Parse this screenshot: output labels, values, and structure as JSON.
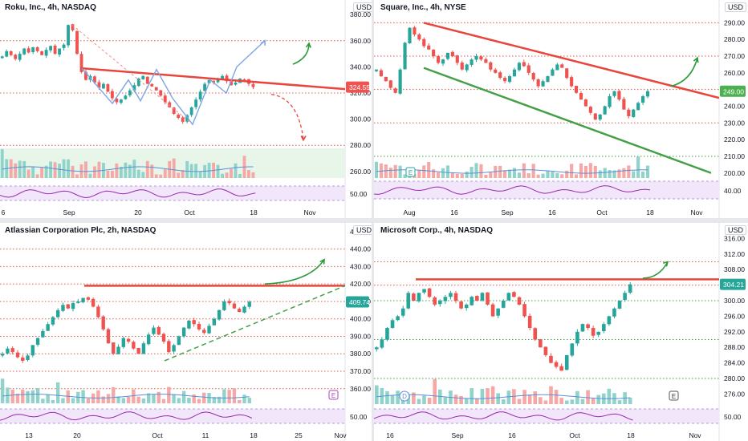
{
  "panels": [
    {
      "title": "Roku, Inc., 4h, NASDAQ",
      "currency": "USD",
      "price_tag": "324.55",
      "y_ticks": [
        "380.00",
        "360.00",
        "340.00",
        "320.00",
        "300.00",
        "280.00",
        "260.00"
      ],
      "rsi_tick": "50.00",
      "x_ticks": [
        "6",
        "Sep",
        "20",
        "Oct",
        "18",
        "Nov"
      ]
    },
    {
      "title": "Square, Inc., 4h, NYSE",
      "currency": "USD",
      "price_tag": "249.00",
      "y_ticks": [
        "290.00",
        "280.00",
        "270.00",
        "260.00",
        "250.00",
        "240.00",
        "230.00",
        "220.00",
        "210.00",
        "200.00"
      ],
      "rsi_tick": "40.00",
      "x_ticks": [
        "Aug",
        "16",
        "Sep",
        "16",
        "Oct",
        "18",
        "Nov"
      ],
      "event_marker": "E"
    },
    {
      "title": "Atlassian Corporation Plc, 2h, NASDAQ",
      "currency": "USD",
      "price_tag": "409.74",
      "y_ticks": [
        "450.00",
        "440.00",
        "430.00",
        "420.00",
        "410.00",
        "400.00",
        "390.00",
        "380.00",
        "370.00",
        "360.00"
      ],
      "rsi_tick": "50.00",
      "x_ticks": [
        "13",
        "20",
        "Oct",
        "11",
        "18",
        "25",
        "Nov"
      ],
      "event_marker": "E"
    },
    {
      "title": "Microsoft Corp., 4h, NASDAQ",
      "currency": "USD",
      "price_tag": "304.21",
      "y_ticks": [
        "316.00",
        "312.00",
        "308.00",
        "304.00",
        "300.00",
        "296.00",
        "292.00",
        "288.00",
        "284.00",
        "280.00",
        "276.00"
      ],
      "rsi_tick": "50.00",
      "x_ticks": [
        "16",
        "Sep",
        "16",
        "Oct",
        "18",
        "Nov"
      ],
      "event_markers": [
        "D",
        "E"
      ]
    }
  ],
  "colors": {
    "up": "#26a69a",
    "down": "#ef5350",
    "resistance": "#e8453c",
    "support": "#43a047",
    "dotted_level": "#e05a4f",
    "dotted_level_green": "#43a047",
    "arrow": "#2e9a3b",
    "path": "#7aa6e6",
    "ma": "#5b8fd8",
    "rsi": "#9c27b0",
    "rsi_band": "#f1e6fa",
    "volume_band": "#e8f5e9"
  },
  "chart_data": [
    {
      "type": "candlestick",
      "title": "Roku, Inc., 4h, NASDAQ",
      "ylim": [
        255,
        385
      ],
      "x_labels": [
        "6",
        "Sep",
        "20",
        "Oct",
        "18",
        "Nov"
      ],
      "last_price": 324.55,
      "closes": [
        348,
        352,
        349,
        346,
        350,
        354,
        351,
        355,
        352,
        349,
        353,
        356,
        350,
        354,
        357,
        372,
        368,
        350,
        336,
        330,
        333,
        328,
        324,
        327,
        321,
        316,
        313,
        315,
        318,
        322,
        326,
        331,
        333,
        327,
        325,
        322,
        318,
        313,
        309,
        304,
        301,
        298,
        303,
        309,
        315,
        321,
        327,
        330,
        328,
        331,
        333,
        329,
        326,
        328,
        331,
        330,
        327,
        324.55
      ],
      "levels_dotted": [
        360,
        320,
        280
      ],
      "resistance_trendline": [
        [
          0.22,
          339
        ],
        [
          1.0,
          323
        ]
      ],
      "projection_up": "to ~360 then higher",
      "projection_down": "from ~319 dropping to ~283",
      "volume_visible": true,
      "rsi_visible": true
    },
    {
      "type": "candlestick",
      "title": "Square, Inc., 4h, NYSE",
      "ylim": [
        197,
        295
      ],
      "x_labels": [
        "Aug",
        "16",
        "Sep",
        "16",
        "Oct",
        "18",
        "Nov"
      ],
      "last_price": 249.0,
      "closes": [
        262,
        258,
        255,
        251,
        248,
        262,
        278,
        287,
        283,
        280,
        276,
        274,
        270,
        266,
        268,
        272,
        270,
        266,
        262,
        265,
        268,
        270,
        268,
        266,
        262,
        260,
        257,
        255,
        258,
        262,
        266,
        264,
        260,
        256,
        252,
        255,
        258,
        262,
        265,
        263,
        257,
        252,
        248,
        244,
        240,
        236,
        232,
        235,
        240,
        246,
        249,
        244,
        238,
        234,
        238,
        242,
        246,
        249
      ],
      "levels_dotted": [
        290,
        270,
        250,
        230,
        210
      ],
      "resistance_trendline": [
        [
          0.14,
          290
        ],
        [
          1.0,
          245
        ]
      ],
      "support_trendline": [
        [
          0.14,
          263
        ],
        [
          1.0,
          201
        ]
      ],
      "volume_visible": true,
      "rsi_visible": true
    },
    {
      "type": "candlestick",
      "title": "Atlassian Corporation Plc, 2h, NASDAQ",
      "ylim": [
        353,
        455
      ],
      "x_labels": [
        "13",
        "20",
        "Oct",
        "11",
        "18",
        "25",
        "Nov"
      ],
      "last_price": 409.74,
      "closes": [
        380,
        383,
        381,
        378,
        376,
        379,
        385,
        389,
        393,
        397,
        401,
        405,
        408,
        406,
        409,
        410,
        412,
        411,
        407,
        401,
        394,
        386,
        380,
        384,
        389,
        387,
        383,
        380,
        386,
        391,
        395,
        391,
        387,
        381,
        385,
        390,
        395,
        399,
        397,
        394,
        392,
        396,
        400,
        405,
        410,
        409,
        406,
        404,
        407,
        409.74
      ],
      "levels_dotted": [
        440,
        430,
        420,
        410,
        400,
        390,
        380,
        370,
        360
      ],
      "resistance_level": 419,
      "support_trendline_dashed": [
        [
          0.47,
          376
        ],
        [
          1.0,
          419
        ]
      ],
      "volume_visible": true,
      "rsi_visible": true
    },
    {
      "type": "candlestick",
      "title": "Microsoft Corp., 4h, NASDAQ",
      "ylim": [
        273,
        320
      ],
      "x_labels": [
        "16",
        "Sep",
        "16",
        "Oct",
        "18",
        "Nov"
      ],
      "last_price": 304.21,
      "closes": [
        288,
        290,
        293,
        295,
        296,
        298,
        302,
        300,
        302,
        303,
        301,
        299,
        300,
        301,
        302,
        300,
        298,
        299,
        301,
        300,
        302,
        299,
        296,
        298,
        300,
        302,
        301,
        299,
        296,
        293,
        290,
        288,
        286,
        284,
        283,
        282,
        286,
        289,
        292,
        294,
        293,
        291,
        292,
        294,
        296,
        298,
        300,
        302,
        304.21
      ],
      "levels_dotted": [
        310,
        304,
        300,
        290,
        280
      ],
      "resistance_level": 305.5,
      "volume_visible": true,
      "rsi_visible": true
    }
  ]
}
